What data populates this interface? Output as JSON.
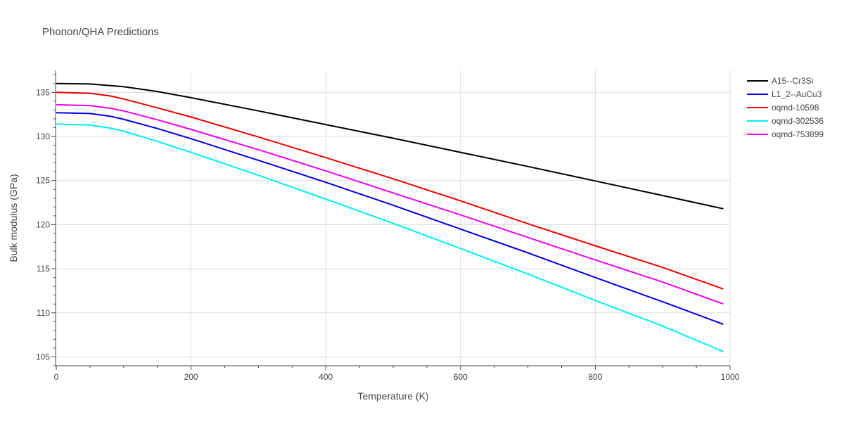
{
  "chart_data": {
    "type": "line",
    "title": "Phonon/QHA Predictions",
    "xlabel": "Temperature (K)",
    "ylabel": "Bulk modulus (GPa)",
    "xlim": [
      0,
      1000
    ],
    "ylim": [
      104,
      137.5
    ],
    "xticks": [
      0,
      200,
      400,
      600,
      800,
      1000
    ],
    "yticks": [
      105,
      110,
      115,
      120,
      125,
      130,
      135
    ],
    "grid": true,
    "legend_position": "top-right",
    "series": [
      {
        "name": "A15--Cr3Si",
        "color": "#000000",
        "x": [
          0,
          50,
          100,
          150,
          200,
          300,
          400,
          500,
          600,
          700,
          800,
          900,
          990
        ],
        "y": [
          136.0,
          135.95,
          135.65,
          135.1,
          134.4,
          132.9,
          131.35,
          129.8,
          128.2,
          126.6,
          124.95,
          123.3,
          121.8
        ]
      },
      {
        "name": "L1_2--AuCu3",
        "color": "#0000dd",
        "x": [
          0,
          50,
          80,
          100,
          150,
          200,
          300,
          400,
          500,
          600,
          700,
          800,
          900,
          990
        ],
        "y": [
          132.7,
          132.6,
          132.3,
          131.95,
          130.9,
          129.75,
          127.3,
          124.8,
          122.2,
          119.5,
          116.8,
          114.0,
          111.25,
          108.7
        ]
      },
      {
        "name": "oqmd-10598",
        "color": "#ee0000",
        "x": [
          0,
          50,
          80,
          100,
          150,
          200,
          300,
          400,
          500,
          600,
          700,
          800,
          900,
          990
        ],
        "y": [
          135.0,
          134.9,
          134.6,
          134.25,
          133.25,
          132.2,
          129.95,
          127.6,
          125.2,
          122.7,
          120.1,
          117.6,
          115.15,
          112.7
        ]
      },
      {
        "name": "oqmd-302536",
        "color": "#00eeee",
        "x": [
          0,
          50,
          80,
          100,
          150,
          200,
          300,
          400,
          500,
          600,
          700,
          800,
          900,
          990
        ],
        "y": [
          131.4,
          131.3,
          130.95,
          130.6,
          129.45,
          128.2,
          125.6,
          122.9,
          120.15,
          117.3,
          114.4,
          111.4,
          108.5,
          105.6
        ]
      },
      {
        "name": "oqmd-753899",
        "color": "#ee00ee",
        "x": [
          0,
          50,
          80,
          100,
          150,
          200,
          300,
          400,
          500,
          600,
          700,
          800,
          900,
          990
        ],
        "y": [
          133.6,
          133.5,
          133.2,
          132.9,
          131.9,
          130.8,
          128.5,
          126.1,
          123.6,
          121.1,
          118.55,
          116.0,
          113.5,
          111.0
        ]
      }
    ]
  }
}
